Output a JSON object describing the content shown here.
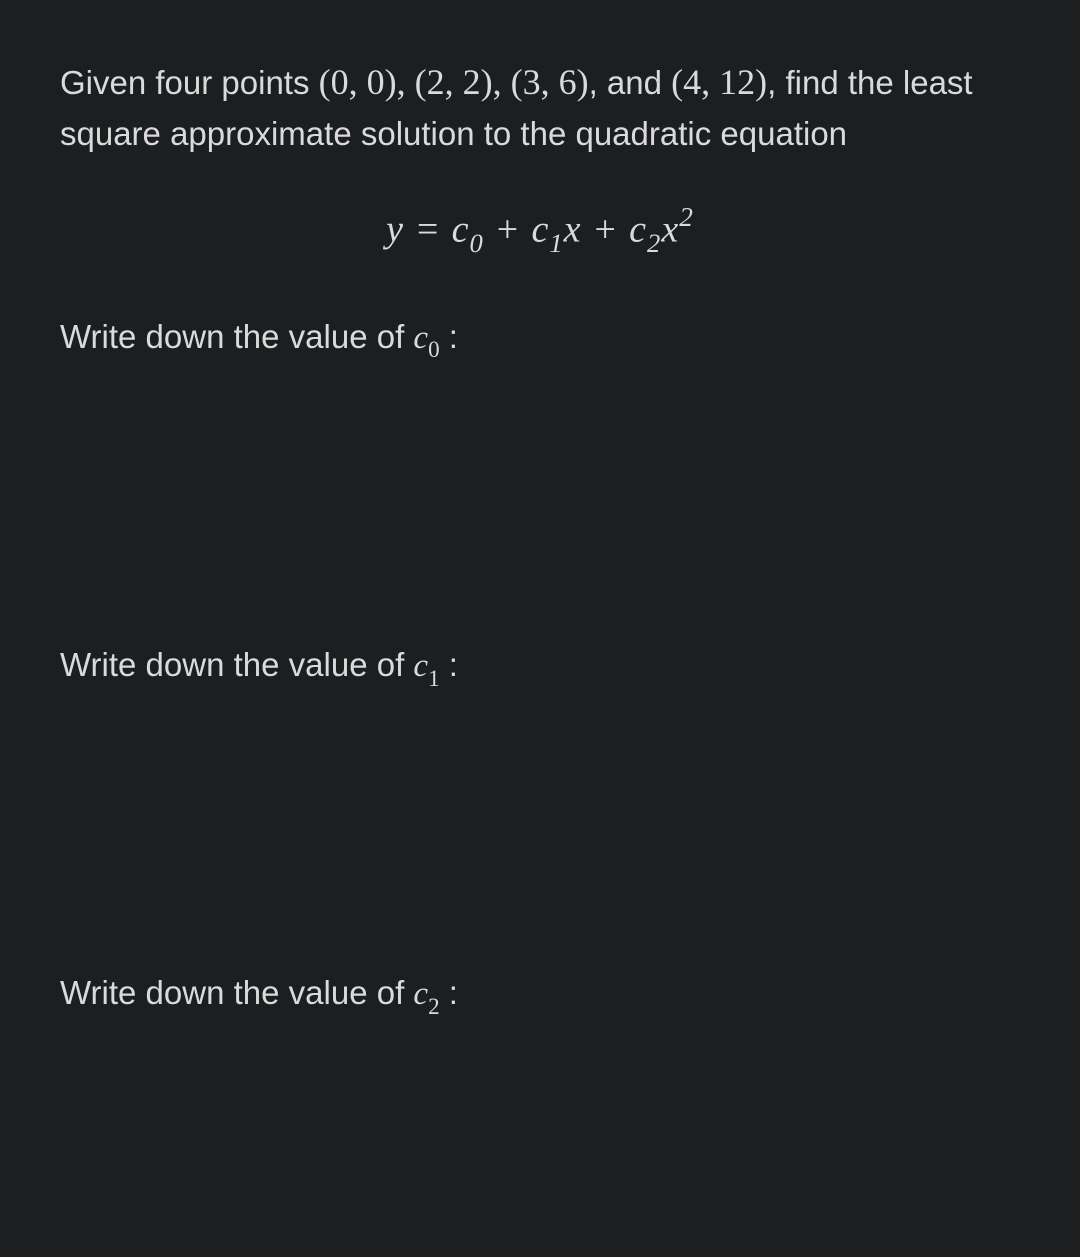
{
  "colors": {
    "background": "#1d1e20",
    "text": "#d9dadb"
  },
  "problem": {
    "intro_part1": "Given four points ",
    "points": "(0, 0), (2, 2), (3, 6)",
    "intro_part2": ", and ",
    "last_point": "(4, 12)",
    "intro_part3": ", find the least square approximate solution to the quadratic equation"
  },
  "equation": {
    "lhs": "y",
    "eq": " = ",
    "c0": "c",
    "c0_sub": "0",
    "plus1": " + ",
    "c1": "c",
    "c1_sub": "1",
    "x1": "x",
    "plus2": " + ",
    "c2": "c",
    "c2_sub": "2",
    "x2": "x",
    "x2_sup": "2"
  },
  "prompts": {
    "p0_prefix": "Write down the value of ",
    "p0_var": "c",
    "p0_sub": "0",
    "p0_suffix": " :",
    "p1_prefix": "Write down the value of ",
    "p1_var": "c",
    "p1_sub": "1",
    "p1_suffix": " :",
    "p2_prefix": "Write down the value of ",
    "p2_var": "c",
    "p2_sub": "2",
    "p2_suffix": " :"
  }
}
